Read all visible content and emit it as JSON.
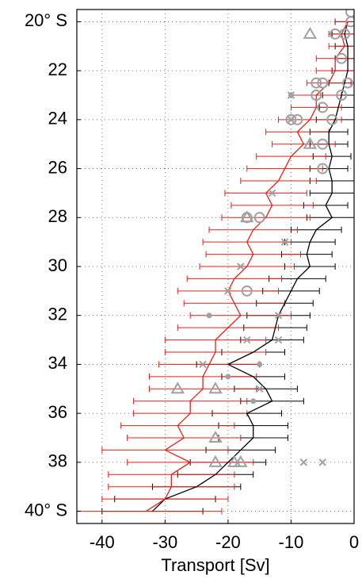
{
  "chart_data": {
    "type": "errorbar",
    "xlabel": "Transport [Sv]",
    "xlim": [
      -44,
      0
    ],
    "ylim": [
      19.5,
      40.5
    ],
    "xticks": [
      -40,
      -30,
      -20,
      -10,
      0
    ],
    "yticks": [
      {
        "value": 20,
        "label": "20° S"
      },
      22,
      24,
      26,
      28,
      30,
      32,
      34,
      36,
      38,
      {
        "value": 40,
        "label": "40° S"
      }
    ],
    "grid": true,
    "y_inverted": true,
    "y": [
      20,
      20.5,
      21,
      21.5,
      22,
      22.5,
      23,
      23.5,
      24,
      24.5,
      25,
      25.5,
      26,
      26.5,
      27,
      27.5,
      28,
      28.5,
      29,
      29.5,
      30,
      30.5,
      31,
      31.5,
      32,
      32.5,
      33,
      33.5,
      34,
      34.5,
      35,
      35.5,
      36,
      36.5,
      37,
      37.5,
      38,
      38.5,
      39,
      39.5,
      40
    ],
    "series": [
      {
        "color": "#000000",
        "values": [
          -1,
          -1.5,
          -1,
          -1,
          -1,
          -1.5,
          -2,
          -2.5,
          -3,
          -4,
          -4,
          -3.5,
          -4,
          -3.5,
          -3.5,
          -4.5,
          -3.5,
          -6,
          -7,
          -7.5,
          -7,
          -9,
          -10,
          -11,
          -12,
          -12.5,
          -13,
          -16,
          -20,
          -16,
          -14,
          -13,
          -17,
          -16,
          -16,
          -18,
          -20,
          -22,
          -25,
          -30,
          -32
        ],
        "errors": [
          2,
          2,
          2,
          2,
          2.5,
          2.5,
          3,
          3,
          3,
          3,
          3,
          3,
          3,
          3.5,
          3.5,
          3.5,
          4,
          4,
          4,
          4,
          4,
          4.5,
          4.5,
          4.5,
          5,
          5,
          5,
          5,
          5,
          5,
          5,
          5,
          5.5,
          5.5,
          5.5,
          5.5,
          6,
          6,
          7,
          8,
          8
        ]
      },
      {
        "color": "#e0201b",
        "values": [
          -1,
          -2,
          -1.5,
          -3,
          -3,
          -4,
          -6,
          -6,
          -7,
          -9,
          -8,
          -10,
          -11,
          -12,
          -14,
          -13,
          -14,
          -16,
          -17,
          -16,
          -17,
          -19,
          -20,
          -19,
          -18,
          -20,
          -22,
          -22,
          -23,
          -24,
          -24,
          -26,
          -26,
          -28,
          -27,
          -30,
          -26,
          -29,
          -29,
          -30,
          -33
        ],
        "errors": [
          2,
          2,
          2.5,
          3,
          3,
          3.5,
          4,
          4,
          5,
          5,
          5,
          5.5,
          6,
          6,
          6.5,
          6.5,
          7,
          7,
          7,
          7.5,
          7.5,
          7.5,
          8,
          8,
          8,
          8,
          8,
          8,
          8,
          8.5,
          8.5,
          9,
          9,
          9,
          9,
          10,
          10,
          10,
          10,
          10,
          12
        ]
      }
    ],
    "markers": [
      {
        "marker": "circle",
        "color": "#a0a0a0",
        "x": [
          -0.5,
          -0.5,
          -1.5,
          -3,
          -2,
          -1,
          -5,
          -6,
          -6,
          -2,
          -5,
          -9,
          -10,
          -3.5,
          -5,
          -5,
          -17,
          -15,
          -17
        ],
        "y": [
          19.6,
          20,
          20.5,
          20.5,
          21.5,
          22.5,
          22.5,
          22.5,
          23,
          23,
          23.5,
          24,
          24,
          24,
          25,
          26,
          28,
          28,
          31
        ]
      },
      {
        "marker": "triangle",
        "color": "#a0a0a0",
        "x": [
          -7,
          -7,
          -17,
          -28,
          -22,
          -22,
          -22,
          -19,
          -18
        ],
        "y": [
          20.5,
          25,
          28,
          35,
          35,
          37,
          38,
          38,
          38
        ]
      },
      {
        "marker": "cross",
        "color": "#a0a0a0",
        "x": [
          -10,
          -10,
          -13,
          -11,
          -18,
          -20,
          -17,
          -24,
          -15,
          -8,
          -5,
          -12,
          -12
        ],
        "y": [
          23,
          24,
          27,
          29,
          30,
          31,
          33,
          34,
          35,
          38,
          38,
          32,
          33
        ]
      },
      {
        "marker": "dot",
        "color": "#a0a0a0",
        "x": [
          -10,
          -23,
          -15,
          -20,
          -16
        ],
        "y": [
          23,
          32,
          34,
          34.5,
          35.5
        ]
      }
    ]
  }
}
